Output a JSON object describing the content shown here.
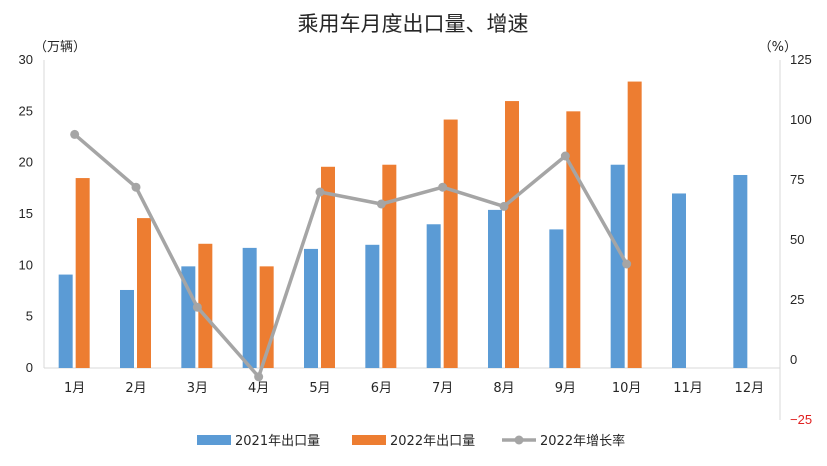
{
  "chart_data": {
    "type": "bar",
    "title": "乘用车月度出口量、增速",
    "y_left_unit": "（万辆）",
    "y_right_unit": "（%）",
    "categories": [
      "1月",
      "2月",
      "3月",
      "4月",
      "5月",
      "6月",
      "7月",
      "8月",
      "9月",
      "10月",
      "11月",
      "12月"
    ],
    "ylim_left": [
      0,
      30
    ],
    "yticks_left": [
      "0",
      "5",
      "10",
      "15",
      "20",
      "25",
      "30"
    ],
    "ylim_right": [
      -25,
      125
    ],
    "yticks_right": [
      "−25",
      "0",
      "25",
      "50",
      "75",
      "100",
      "125"
    ],
    "series": [
      {
        "name": "2021年出口量",
        "kind": "bar",
        "axis": "left",
        "color": "#5b9bd5",
        "values": [
          9.1,
          7.6,
          9.9,
          11.7,
          11.6,
          12.0,
          14.0,
          15.4,
          13.5,
          19.8,
          17.0,
          18.8
        ]
      },
      {
        "name": "2022年出口量",
        "kind": "bar",
        "axis": "left",
        "color": "#ed7d31",
        "values": [
          18.5,
          14.6,
          12.1,
          9.9,
          19.6,
          19.8,
          24.2,
          26.0,
          25.0,
          27.9,
          null,
          null
        ]
      },
      {
        "name": "2022年增长率",
        "kind": "line",
        "axis": "right",
        "color": "#a5a5a5",
        "values": [
          94,
          72,
          22,
          -7,
          70,
          65,
          72,
          64,
          85,
          40,
          null,
          null
        ]
      }
    ],
    "grid": false,
    "legend_position": "bottom"
  }
}
